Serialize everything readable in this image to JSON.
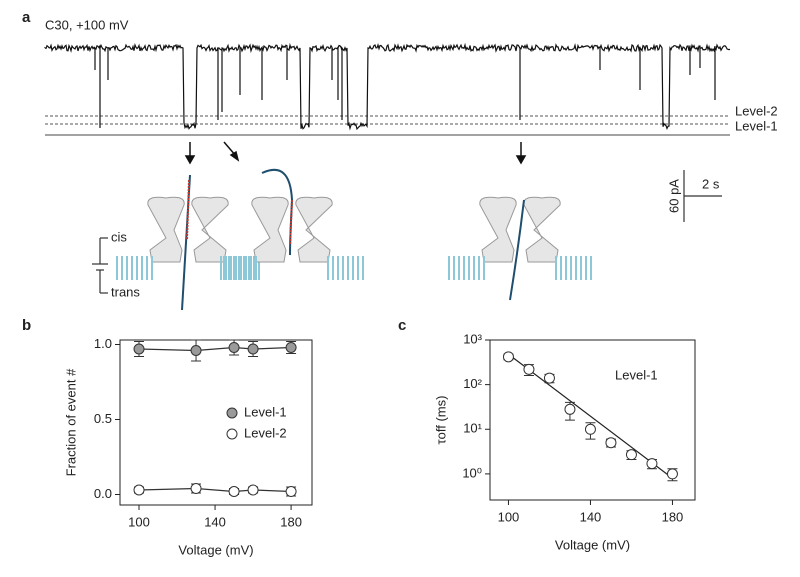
{
  "panel_a": {
    "label": "a",
    "title": "C30, +100 mV",
    "level_2": "Level-2",
    "level_1": "Level-1",
    "cis": "cis",
    "trans": "trans",
    "scale_y": "60 pA",
    "scale_x": "2 s"
  },
  "chart_data": [
    {
      "type": "line",
      "panel": "b",
      "xlabel": "Voltage (mV)",
      "ylabel": "Fraction of event #",
      "x": [
        100,
        130,
        150,
        160,
        180
      ],
      "series": [
        {
          "name": "Level-1",
          "color": "#9a9a9a",
          "values": [
            0.97,
            0.96,
            0.98,
            0.97,
            0.98
          ],
          "errors": [
            0.05,
            0.07,
            0.05,
            0.05,
            0.04
          ]
        },
        {
          "name": "Level-2",
          "color": "#ffffff",
          "values": [
            0.03,
            0.04,
            0.02,
            0.03,
            0.02
          ],
          "errors": [
            0.02,
            0.03,
            0.02,
            0.02,
            0.03
          ]
        }
      ],
      "xlim": [
        90,
        191
      ],
      "ylim": [
        -0.07,
        1.03
      ],
      "xticks": [
        100,
        140,
        180
      ],
      "yticks": [
        {
          "value": 0,
          "label": "0.0"
        },
        {
          "value": 0.5,
          "label": "0.5"
        },
        {
          "value": 1,
          "label": "1.0"
        }
      ]
    },
    {
      "type": "scatter",
      "panel": "c",
      "xlabel": "Voltage (mV)",
      "ylabel": "τoff (ms)",
      "annotation": "Level-1",
      "log_y": true,
      "x": [
        100,
        110,
        120,
        130,
        140,
        150,
        160,
        170,
        180
      ],
      "series": [
        {
          "name": "Level-1",
          "color": "#ffffff",
          "values": [
            420,
            220,
            140,
            28,
            10,
            5,
            2.7,
            1.7,
            1.0
          ],
          "errors": [
            60,
            60,
            30,
            12,
            4,
            1,
            0.6,
            0.4,
            0.3
          ]
        }
      ],
      "fit": {
        "x": [
          100,
          180
        ],
        "values": [
          480,
          0.8
        ]
      },
      "xlim": [
        91,
        191
      ],
      "ylim": [
        0.26,
        1000
      ],
      "xticks": [
        100,
        140,
        180
      ],
      "yticks": [
        {
          "value": 1,
          "label": "10⁰"
        },
        {
          "value": 10,
          "label": "10¹"
        },
        {
          "value": 100,
          "label": "10²"
        },
        {
          "value": 1000,
          "label": "10³"
        }
      ]
    }
  ]
}
